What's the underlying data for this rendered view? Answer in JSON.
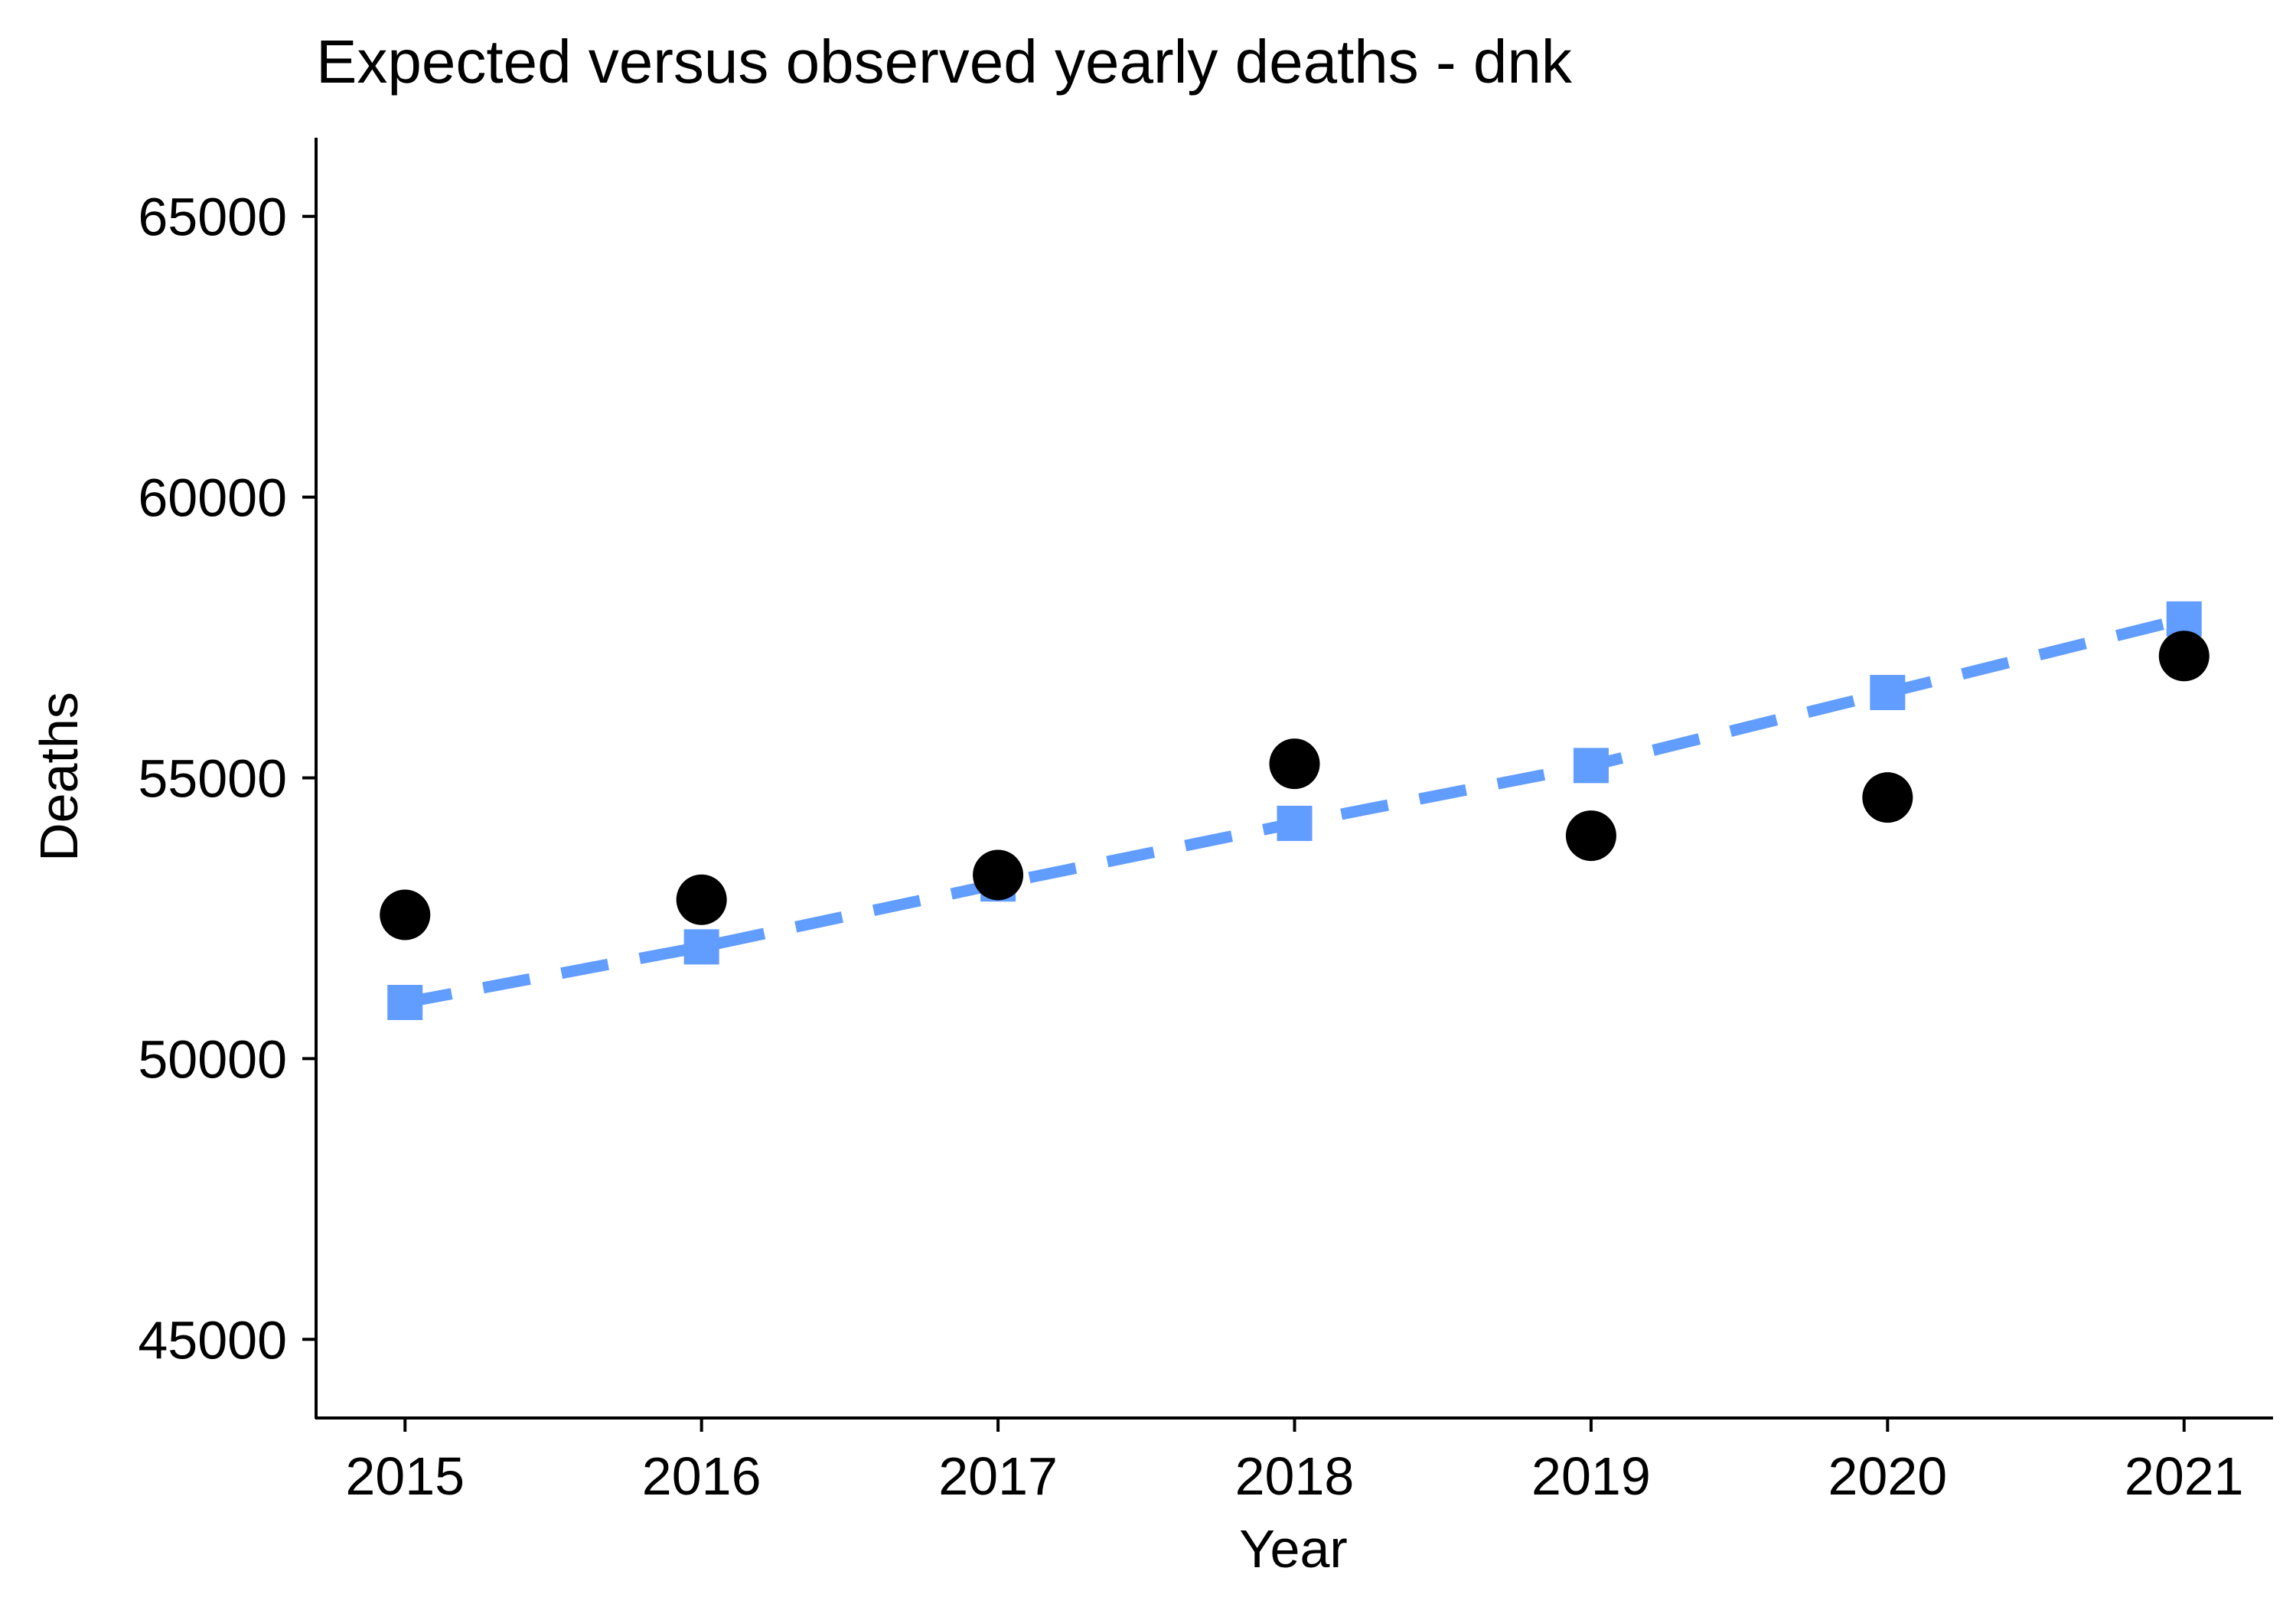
{
  "chart_data": {
    "type": "line",
    "title": "Expected versus observed yearly deaths - dnk",
    "xlabel": "Year",
    "ylabel": "Deaths",
    "x": [
      2015,
      2016,
      2017,
      2018,
      2019,
      2020,
      2021
    ],
    "x_tick_labels": [
      "2015",
      "2016",
      "2017",
      "2018",
      "2019",
      "2020",
      "2021"
    ],
    "xlim": [
      2014.7,
      2021.3
    ],
    "ylim": [
      43600,
      66400
    ],
    "y_ticks": [
      45000,
      50000,
      55000,
      60000,
      65000
    ],
    "y_tick_labels": [
      "45000",
      "50000",
      "55000",
      "60000",
      "65000"
    ],
    "grid": false,
    "legend": "none",
    "series": [
      {
        "role": "expected",
        "style": "dashed line with square markers",
        "color": "#619CFF",
        "values": [
          51000,
          51990,
          53110,
          54190,
          55220,
          56520,
          57830
        ]
      },
      {
        "role": "observed",
        "style": "circle markers",
        "color": "#000000",
        "values": [
          52560,
          52830,
          53270,
          55250,
          53970,
          54650,
          57170
        ]
      }
    ]
  }
}
